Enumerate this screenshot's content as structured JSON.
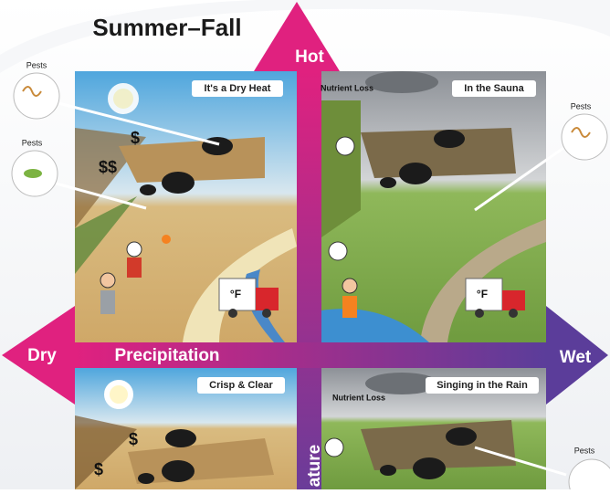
{
  "title": "Summer–Fall",
  "axes": {
    "top": "Hot",
    "left": "Dry",
    "horizontal": "Precipitation",
    "right": "Wet",
    "vertical": "ature"
  },
  "quadrants": [
    {
      "label": "It's a Dry Heat",
      "annotations": [
        "$",
        "$$",
        "°F"
      ]
    },
    {
      "label": "In the Sauna",
      "annotations": [
        "Nutrient Loss",
        "°F"
      ]
    },
    {
      "label": "Crisp & Clear",
      "annotations": [
        "$",
        "$"
      ]
    },
    {
      "label": "Singing in the Rain",
      "annotations": [
        "Nutrient Loss"
      ]
    }
  ],
  "callouts": [
    "Pests",
    "Pests",
    "Pests",
    "Pests"
  ]
}
